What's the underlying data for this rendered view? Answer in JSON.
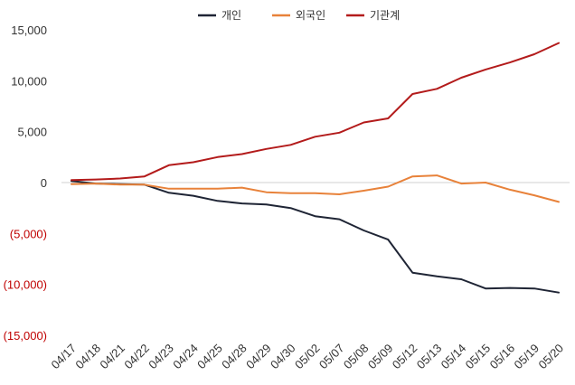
{
  "chart_data": {
    "type": "line",
    "title": "",
    "xlabel": "",
    "ylabel": "",
    "x": [
      "04/17",
      "04/18",
      "04/21",
      "04/22",
      "04/23",
      "04/24",
      "04/25",
      "04/28",
      "04/29",
      "04/30",
      "05/02",
      "05/07",
      "05/08",
      "05/09",
      "05/12",
      "05/13",
      "05/14",
      "05/15",
      "05/16",
      "05/19",
      "05/20"
    ],
    "ylim": [
      -15000,
      15000
    ],
    "yticks": [
      15000,
      10000,
      5000,
      0,
      -5000,
      -10000,
      -15000
    ],
    "ytick_labels": [
      "15,000",
      "10,000",
      "5,000",
      "0",
      "(5,000)",
      "(10,000)",
      "(15,000)"
    ],
    "negative_label_color": "#c00000",
    "positive_label_color": "#333333",
    "legend_position": "top-center",
    "grid": false,
    "zero_line": true,
    "series": [
      {
        "name": "개인",
        "color": "#1f2535",
        "values": [
          150,
          -100,
          -150,
          -200,
          -1000,
          -1300,
          -1800,
          -2050,
          -2150,
          -2500,
          -3300,
          -3600,
          -4700,
          -5600,
          -8850,
          -9200,
          -9500,
          -10400,
          -10350,
          -10400,
          -10800
        ]
      },
      {
        "name": "외국인",
        "color": "#e8823a",
        "values": [
          -150,
          -100,
          -200,
          -200,
          -600,
          -600,
          -600,
          -500,
          -950,
          -1050,
          -1050,
          -1150,
          -800,
          -400,
          600,
          700,
          -100,
          0,
          -700,
          -1250,
          -1900
        ]
      },
      {
        "name": "기관계",
        "color": "#b31b1b",
        "values": [
          250,
          300,
          400,
          600,
          1700,
          2000,
          2500,
          2800,
          3300,
          3700,
          4500,
          4900,
          5900,
          6300,
          8700,
          9200,
          10300,
          11100,
          11800,
          12600,
          13700
        ]
      }
    ]
  }
}
